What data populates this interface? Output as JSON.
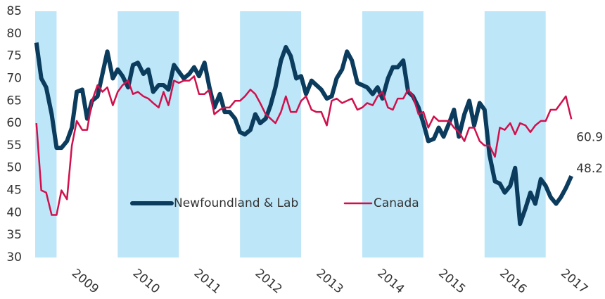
{
  "chart_data": {
    "type": "line",
    "x": [
      2008.67,
      2008.75,
      2008.83,
      2008.92,
      2009,
      2009.08,
      2009.17,
      2009.25,
      2009.33,
      2009.42,
      2009.5,
      2009.58,
      2009.67,
      2009.75,
      2009.83,
      2009.92,
      2010,
      2010.08,
      2010.17,
      2010.25,
      2010.33,
      2010.42,
      2010.5,
      2010.58,
      2010.67,
      2010.75,
      2010.83,
      2010.92,
      2011,
      2011.08,
      2011.17,
      2011.25,
      2011.33,
      2011.42,
      2011.5,
      2011.58,
      2011.67,
      2011.75,
      2011.83,
      2011.92,
      2012,
      2012.08,
      2012.17,
      2012.25,
      2012.33,
      2012.42,
      2012.5,
      2012.58,
      2012.67,
      2012.75,
      2012.83,
      2012.92,
      2013,
      2013.08,
      2013.17,
      2013.25,
      2013.33,
      2013.42,
      2013.5,
      2013.58,
      2013.67,
      2013.75,
      2013.83,
      2013.92,
      2014,
      2014.08,
      2014.17,
      2014.25,
      2014.33,
      2014.42,
      2014.5,
      2014.58,
      2014.67,
      2014.75,
      2014.83,
      2014.92,
      2015,
      2015.08,
      2015.17,
      2015.25,
      2015.33,
      2015.42,
      2015.5,
      2015.58,
      2015.67,
      2015.75,
      2015.83,
      2015.92,
      2016,
      2016.08,
      2016.17,
      2016.25,
      2016.33,
      2016.42,
      2016.5,
      2016.58,
      2016.67,
      2016.75,
      2016.83,
      2016.92,
      2017,
      2017.08,
      2017.17,
      2017.25,
      2017.33,
      2017.42
    ],
    "series": [
      {
        "name": "Newfoundland & Lab",
        "color": "#0b3c5d",
        "width": 6,
        "values": [
          78,
          70,
          68,
          62,
          54.5,
          54.5,
          56,
          59,
          67,
          67.5,
          61,
          65,
          66,
          71,
          76,
          70,
          72,
          70.5,
          68,
          73,
          73.5,
          71,
          72,
          67,
          68.5,
          68.5,
          67.5,
          73,
          71.5,
          70,
          71,
          72.5,
          70.5,
          73.5,
          68,
          63.5,
          66.5,
          62.5,
          62.5,
          61,
          58,
          57.5,
          58.5,
          62,
          60,
          61,
          64,
          68,
          74,
          77,
          75,
          70,
          70.5,
          66.5,
          69.5,
          68.5,
          67.5,
          65.5,
          66,
          70,
          72,
          76,
          74,
          69,
          68.5,
          68,
          66.5,
          68,
          65.5,
          70,
          72.5,
          72.5,
          74,
          67,
          66,
          63.5,
          60,
          56,
          56.5,
          59,
          57,
          60,
          63,
          57,
          62,
          65,
          59.5,
          64.5,
          63,
          53,
          47,
          46.5,
          44.5,
          46,
          50,
          37.5,
          41,
          44.5,
          42,
          47.5,
          46,
          43.5,
          42,
          43.5,
          45.5,
          48.2
        ]
      },
      {
        "name": "Canada",
        "color": "#d0104c",
        "width": 2.5,
        "values": [
          60,
          45,
          44.5,
          39.5,
          39.5,
          45,
          43,
          55,
          60.5,
          58.5,
          58.5,
          65,
          68.5,
          67,
          68,
          64,
          67,
          68.5,
          69.5,
          66.5,
          67,
          66,
          65.5,
          64.5,
          63.5,
          67,
          64,
          69.5,
          69,
          69.5,
          69.5,
          70.5,
          66.5,
          66.5,
          67.5,
          62,
          63,
          63.5,
          63.5,
          65,
          65,
          66,
          67.5,
          66.5,
          64.5,
          62,
          61,
          60,
          62.5,
          66,
          62.5,
          62.5,
          65,
          66,
          63,
          62.5,
          62.5,
          59.5,
          65,
          65.5,
          64.5,
          65,
          65.5,
          63,
          63.5,
          64.5,
          64,
          66,
          67,
          63.5,
          63,
          65.5,
          65.5,
          67.5,
          66,
          62,
          62.5,
          59,
          61.5,
          60.5,
          60.5,
          60.5,
          59,
          58,
          56,
          59,
          59,
          56,
          55,
          55,
          52.5,
          59,
          58.5,
          60,
          57.5,
          60,
          59.5,
          58,
          59.5,
          60.5,
          60.5,
          63,
          63,
          64.5,
          66,
          60.9
        ]
      }
    ],
    "xlim": [
      2008.65,
      2017.97
    ],
    "xticks": [
      {
        "value": 2009.5,
        "label": "2009"
      },
      {
        "value": 2010.5,
        "label": "2010"
      },
      {
        "value": 2011.5,
        "label": "2011"
      },
      {
        "value": 2012.5,
        "label": "2012"
      },
      {
        "value": 2013.5,
        "label": "2013"
      },
      {
        "value": 2014.5,
        "label": "2014"
      },
      {
        "value": 2015.5,
        "label": "2015"
      },
      {
        "value": 2016.5,
        "label": "2016"
      },
      {
        "value": 2017.5,
        "label": "2017"
      }
    ],
    "ylim": [
      30,
      85
    ],
    "yticks": [
      30,
      35,
      40,
      45,
      50,
      55,
      60,
      65,
      70,
      75,
      80,
      85
    ],
    "shaded": [
      [
        2008.65,
        2009
      ],
      [
        2010,
        2011
      ],
      [
        2012,
        2013
      ],
      [
        2014,
        2015
      ],
      [
        2016,
        2017
      ]
    ],
    "shade_color": "#bde6f8",
    "label_last": true,
    "legend": "center",
    "grid": false
  }
}
